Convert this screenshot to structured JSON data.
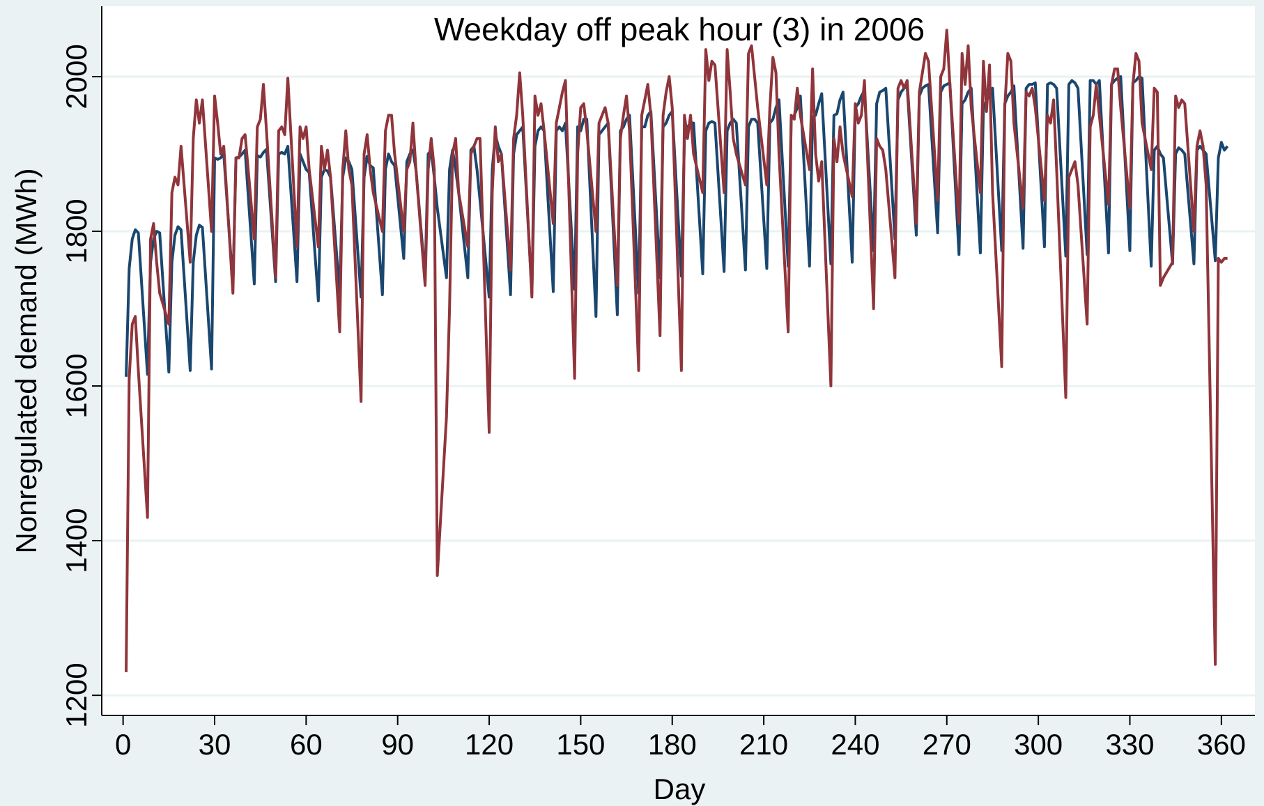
{
  "chart_data": {
    "type": "line",
    "title": "Weekday off peak hour (3) in 2006",
    "x_label": "Day",
    "y_label": "Nonregulated demand (MWh)",
    "xlim": [
      -7,
      371
    ],
    "ylim": [
      1174,
      2091
    ],
    "xticks": [
      0,
      30,
      60,
      90,
      120,
      150,
      180,
      210,
      240,
      270,
      300,
      330,
      360
    ],
    "yticks": [
      1200,
      1400,
      1600,
      1800,
      2000
    ],
    "grid": true,
    "x": [
      1,
      2,
      3,
      4,
      5,
      8,
      9,
      10,
      11,
      12,
      15,
      16,
      17,
      18,
      19,
      22,
      23,
      24,
      25,
      26,
      29,
      30,
      31,
      32,
      33,
      36,
      37,
      38,
      39,
      40,
      43,
      44,
      45,
      46,
      47,
      50,
      51,
      52,
      53,
      54,
      57,
      58,
      59,
      60,
      61,
      64,
      65,
      66,
      67,
      68,
      71,
      72,
      73,
      74,
      75,
      78,
      79,
      80,
      81,
      82,
      85,
      86,
      87,
      88,
      89,
      92,
      93,
      94,
      95,
      96,
      99,
      100,
      101,
      102,
      103,
      106,
      107,
      108,
      109,
      110,
      113,
      114,
      115,
      116,
      117,
      120,
      121,
      122,
      123,
      124,
      127,
      128,
      129,
      130,
      131,
      134,
      135,
      136,
      137,
      138,
      141,
      142,
      143,
      144,
      145,
      148,
      149,
      150,
      151,
      152,
      155,
      156,
      157,
      158,
      159,
      162,
      163,
      164,
      165,
      166,
      169,
      170,
      171,
      172,
      173,
      176,
      177,
      178,
      179,
      180,
      183,
      184,
      185,
      186,
      187,
      190,
      191,
      192,
      193,
      194,
      197,
      198,
      199,
      200,
      201,
      204,
      205,
      206,
      207,
      208,
      211,
      212,
      213,
      214,
      215,
      218,
      219,
      220,
      221,
      222,
      225,
      226,
      227,
      228,
      229,
      232,
      233,
      234,
      235,
      236,
      239,
      240,
      241,
      242,
      243,
      246,
      247,
      248,
      249,
      250,
      253,
      254,
      255,
      256,
      257,
      260,
      261,
      262,
      263,
      264,
      267,
      268,
      269,
      270,
      271,
      274,
      275,
      276,
      277,
      278,
      281,
      282,
      283,
      284,
      285,
      288,
      289,
      290,
      291,
      292,
      295,
      296,
      297,
      298,
      299,
      302,
      303,
      304,
      305,
      306,
      309,
      310,
      311,
      312,
      313,
      316,
      317,
      318,
      319,
      320,
      323,
      324,
      325,
      326,
      327,
      330,
      331,
      332,
      333,
      334,
      337,
      338,
      339,
      340,
      341,
      344,
      345,
      346,
      347,
      348,
      351,
      352,
      353,
      354,
      355,
      358,
      359,
      360,
      361,
      362
    ],
    "series": [
      {
        "color": "#1a476f",
        "values": [
          1612,
          1752,
          1790,
          1802,
          1798,
          1615,
          1760,
          1790,
          1800,
          1798,
          1618,
          1760,
          1795,
          1806,
          1802,
          1620,
          1760,
          1795,
          1808,
          1805,
          1622,
          1895,
          1893,
          1895,
          1900,
          1730,
          1895,
          1896,
          1900,
          1905,
          1732,
          1898,
          1896,
          1902,
          1906,
          1735,
          1900,
          1902,
          1900,
          1910,
          1735,
          1900,
          1890,
          1880,
          1876,
          1710,
          1870,
          1880,
          1878,
          1870,
          1720,
          1870,
          1895,
          1890,
          1880,
          1715,
          1870,
          1897,
          1885,
          1882,
          1718,
          1880,
          1900,
          1890,
          1885,
          1765,
          1890,
          1900,
          1905,
          1880,
          1740,
          1900,
          1905,
          1870,
          1830,
          1740,
          1880,
          1905,
          1880,
          1850,
          1740,
          1905,
          1910,
          1880,
          1840,
          1715,
          1880,
          1925,
          1910,
          1900,
          1718,
          1900,
          1925,
          1930,
          1935,
          1720,
          1910,
          1930,
          1935,
          1930,
          1722,
          1930,
          1935,
          1930,
          1940,
          1725,
          1935,
          1930,
          1945,
          1945,
          1690,
          1925,
          1930,
          1935,
          1940,
          1692,
          1930,
          1935,
          1945,
          1950,
          1720,
          1935,
          1935,
          1950,
          1955,
          1740,
          1935,
          1940,
          1950,
          1955,
          1742,
          1920,
          1935,
          1940,
          1940,
          1745,
          1930,
          1940,
          1942,
          1940,
          1748,
          1930,
          1940,
          1945,
          1940,
          1750,
          1935,
          1945,
          1945,
          1940,
          1752,
          1940,
          1945,
          1960,
          1970,
          1755,
          1945,
          1950,
          1960,
          1975,
          1755,
          1948,
          1950,
          1965,
          1978,
          1758,
          1950,
          1952,
          1970,
          1980,
          1760,
          1960,
          1965,
          1975,
          1982,
          1775,
          1965,
          1980,
          1982,
          1985,
          1790,
          1970,
          1980,
          1985,
          1988,
          1795,
          1975,
          1985,
          1988,
          1990,
          1798,
          1980,
          1988,
          1990,
          1992,
          1770,
          1965,
          1970,
          1980,
          1985,
          1772,
          1960,
          1970,
          1975,
          1985,
          1775,
          1965,
          1975,
          1980,
          1988,
          1778,
          1985,
          1990,
          1990,
          1992,
          1780,
          1990,
          1992,
          1990,
          1985,
          1768,
          1990,
          1995,
          1992,
          1985,
          1770,
          1995,
          1995,
          1990,
          1995,
          1772,
          1990,
          1995,
          1998,
          2000,
          1775,
          1992,
          1995,
          2000,
          1998,
          1755,
          1905,
          1910,
          1900,
          1895,
          1758,
          1900,
          1908,
          1905,
          1900,
          1758,
          1905,
          1910,
          1905,
          1900,
          1762,
          1895,
          1915,
          1905,
          1910
        ]
      },
      {
        "color": "#90353b",
        "values": [
          1230,
          1610,
          1680,
          1690,
          1620,
          1430,
          1790,
          1810,
          1760,
          1720,
          1680,
          1850,
          1870,
          1860,
          1910,
          1760,
          1920,
          1970,
          1940,
          1970,
          1800,
          1975,
          1940,
          1900,
          1910,
          1720,
          1895,
          1895,
          1920,
          1925,
          1790,
          1935,
          1945,
          1990,
          1930,
          1740,
          1930,
          1935,
          1925,
          1998,
          1780,
          1935,
          1920,
          1935,
          1880,
          1780,
          1910,
          1880,
          1905,
          1870,
          1670,
          1880,
          1930,
          1880,
          1860,
          1580,
          1900,
          1925,
          1880,
          1850,
          1800,
          1930,
          1950,
          1950,
          1900,
          1800,
          1880,
          1890,
          1940,
          1880,
          1730,
          1880,
          1920,
          1880,
          1355,
          1560,
          1700,
          1900,
          1920,
          1850,
          1780,
          1900,
          1910,
          1920,
          1920,
          1540,
          1850,
          1935,
          1890,
          1900,
          1750,
          1920,
          1950,
          2005,
          1950,
          1715,
          1975,
          1950,
          1965,
          1930,
          1810,
          1940,
          1960,
          1980,
          1995,
          1610,
          1900,
          1960,
          1965,
          1930,
          1800,
          1940,
          1950,
          1960,
          1940,
          1730,
          1920,
          1950,
          1975,
          1930,
          1620,
          1950,
          1970,
          1990,
          1950,
          1665,
          1950,
          1980,
          2000,
          1960,
          1620,
          1950,
          1920,
          1950,
          1900,
          1850,
          2035,
          1995,
          2020,
          2015,
          1850,
          2035,
          1980,
          1920,
          1900,
          1860,
          2030,
          2040,
          2000,
          1960,
          1860,
          1960,
          2025,
          2005,
          1900,
          1670,
          1950,
          1945,
          1985,
          1950,
          1880,
          2010,
          1900,
          1865,
          1890,
          1600,
          1920,
          1890,
          1935,
          1900,
          1845,
          1965,
          1940,
          1950,
          1995,
          1700,
          1920,
          1910,
          1905,
          1880,
          1740,
          1985,
          1995,
          1985,
          1995,
          1810,
          1980,
          2005,
          2030,
          2020,
          1840,
          2000,
          2010,
          2060,
          1990,
          1810,
          2030,
          1990,
          2040,
          1960,
          1850,
          2020,
          1955,
          2015,
          1850,
          1625,
          1960,
          2030,
          2020,
          1940,
          1830,
          1980,
          1975,
          1985,
          1960,
          1840,
          1950,
          1940,
          1970,
          1880,
          1585,
          1870,
          1880,
          1890,
          1860,
          1680,
          1935,
          1950,
          1990,
          1950,
          1835,
          1990,
          2010,
          2010,
          1960,
          1830,
          1990,
          2030,
          2020,
          1940,
          1880,
          1985,
          1980,
          1730,
          1740,
          1760,
          1975,
          1960,
          1970,
          1965,
          1800,
          1910,
          1930,
          1910,
          1860,
          1240,
          1765,
          1760,
          1765,
          1765
        ]
      }
    ]
  }
}
